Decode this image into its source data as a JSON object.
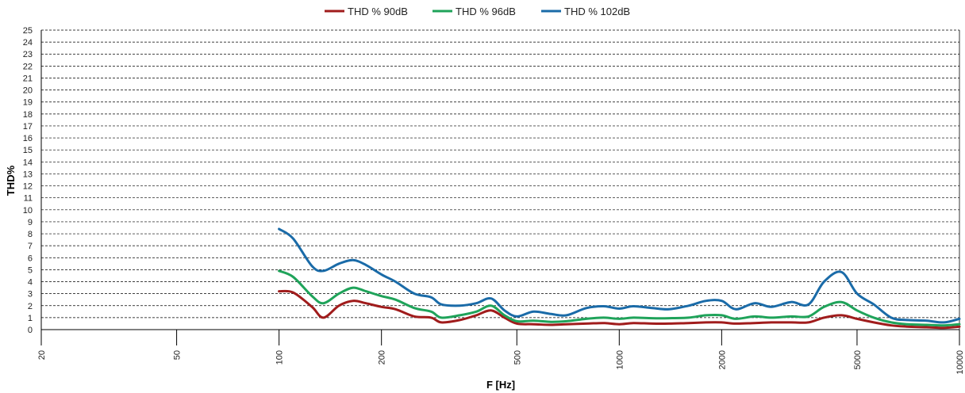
{
  "chart_data": {
    "type": "line",
    "xlabel": "F [Hz]",
    "ylabel": "THD%",
    "x_scale": "log",
    "xlim": [
      20,
      10000
    ],
    "ylim": [
      0,
      25
    ],
    "x_ticks": [
      20,
      50,
      100,
      200,
      500,
      1000,
      2000,
      5000,
      10000
    ],
    "y_ticks": [
      0,
      1,
      2,
      3,
      4,
      5,
      6,
      7,
      8,
      9,
      10,
      11,
      12,
      13,
      14,
      15,
      16,
      17,
      18,
      19,
      20,
      21,
      22,
      23,
      24,
      25
    ],
    "grid": "horizontal dashed",
    "legend_position": "top",
    "series": [
      {
        "name": "THD % 90dB",
        "color": "#A01C1C",
        "x": [
          100,
          110,
          125,
          135,
          150,
          165,
          180,
          200,
          220,
          250,
          280,
          300,
          340,
          380,
          420,
          460,
          500,
          560,
          630,
          700,
          800,
          900,
          1000,
          1100,
          1250,
          1400,
          1600,
          1800,
          2000,
          2200,
          2500,
          2800,
          3200,
          3600,
          4000,
          4500,
          5000,
          5600,
          6300,
          7000,
          8000,
          9000,
          10000
        ],
        "y": [
          3.2,
          3.1,
          1.9,
          1.0,
          2.0,
          2.4,
          2.2,
          1.9,
          1.7,
          1.1,
          1.0,
          0.6,
          0.8,
          1.2,
          1.6,
          1.0,
          0.5,
          0.45,
          0.4,
          0.45,
          0.5,
          0.55,
          0.45,
          0.55,
          0.5,
          0.5,
          0.55,
          0.6,
          0.6,
          0.5,
          0.55,
          0.6,
          0.6,
          0.6,
          1.0,
          1.2,
          0.9,
          0.6,
          0.35,
          0.25,
          0.2,
          0.15,
          0.25
        ]
      },
      {
        "name": "THD % 96dB",
        "color": "#1FA35A",
        "x": [
          100,
          110,
          125,
          135,
          150,
          165,
          180,
          200,
          220,
          250,
          280,
          300,
          340,
          380,
          420,
          460,
          500,
          560,
          630,
          700,
          800,
          900,
          1000,
          1100,
          1250,
          1400,
          1600,
          1800,
          2000,
          2200,
          2500,
          2800,
          3200,
          3600,
          4000,
          4500,
          5000,
          5600,
          6300,
          7000,
          8000,
          9000,
          10000
        ],
        "y": [
          4.9,
          4.4,
          2.8,
          2.2,
          3.0,
          3.5,
          3.2,
          2.8,
          2.5,
          1.8,
          1.5,
          1.0,
          1.2,
          1.5,
          2.0,
          1.2,
          0.7,
          0.75,
          0.65,
          0.7,
          0.9,
          1.0,
          0.9,
          1.0,
          0.95,
          0.95,
          1.0,
          1.2,
          1.2,
          0.9,
          1.1,
          1.0,
          1.1,
          1.1,
          1.9,
          2.3,
          1.6,
          1.0,
          0.6,
          0.45,
          0.4,
          0.35,
          0.45
        ]
      },
      {
        "name": "THD % 102dB",
        "color": "#1A6BA8",
        "x": [
          100,
          110,
          125,
          135,
          150,
          165,
          180,
          200,
          220,
          250,
          280,
          300,
          340,
          380,
          420,
          460,
          500,
          560,
          630,
          700,
          800,
          900,
          1000,
          1100,
          1250,
          1400,
          1600,
          1800,
          2000,
          2200,
          2500,
          2800,
          3200,
          3600,
          4000,
          4500,
          5000,
          5600,
          6300,
          7000,
          8000,
          9000,
          10000
        ],
        "y": [
          8.4,
          7.6,
          5.3,
          4.9,
          5.5,
          5.8,
          5.4,
          4.6,
          4.0,
          3.0,
          2.7,
          2.1,
          2.0,
          2.2,
          2.6,
          1.6,
          1.1,
          1.5,
          1.3,
          1.2,
          1.8,
          1.95,
          1.75,
          1.95,
          1.8,
          1.7,
          2.0,
          2.4,
          2.4,
          1.7,
          2.2,
          1.9,
          2.3,
          2.1,
          4.0,
          4.8,
          3.0,
          2.1,
          1.0,
          0.8,
          0.75,
          0.6,
          0.9
        ]
      }
    ]
  }
}
